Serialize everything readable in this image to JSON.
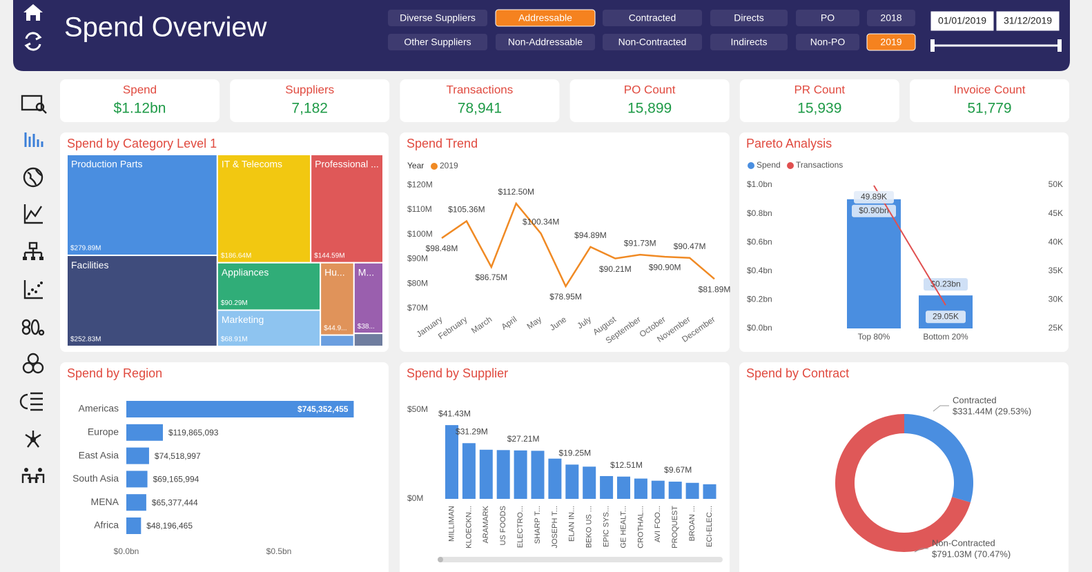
{
  "header": {
    "title": "Spend Overview",
    "filters": [
      [
        {
          "label": "Diverse Suppliers",
          "selected": false
        },
        {
          "label": "Addressable",
          "selected": true
        },
        {
          "label": "Contracted",
          "selected": false
        },
        {
          "label": "Directs",
          "selected": false
        },
        {
          "label": "PO",
          "selected": false
        },
        {
          "label": "2018",
          "selected": false
        }
      ],
      [
        {
          "label": "Other Suppliers",
          "selected": false
        },
        {
          "label": "Non-Addressable",
          "selected": false
        },
        {
          "label": "Non-Contracted",
          "selected": false
        },
        {
          "label": "Indirects",
          "selected": false
        },
        {
          "label": "Non-PO",
          "selected": false
        },
        {
          "label": "2019",
          "selected": true
        }
      ]
    ],
    "date_range": [
      "01/01/2019",
      "31/12/2019"
    ]
  },
  "kpis": [
    {
      "label": "Spend",
      "value": "$1.12bn"
    },
    {
      "label": "Suppliers",
      "value": "7,182"
    },
    {
      "label": "Transactions",
      "value": "78,941"
    },
    {
      "label": "PO Count",
      "value": "15,899"
    },
    {
      "label": "PR Count",
      "value": "15,939"
    },
    {
      "label": "Invoice Count",
      "value": "51,779"
    }
  ],
  "chart_data": [
    {
      "type": "treemap",
      "title": "Spend by Category Level 1",
      "categories": [
        "Production Parts",
        "IT & Telecoms",
        "Professional ...",
        "Facilities",
        "Appliances",
        "Marketing",
        "Hu...",
        "M...",
        null,
        null
      ],
      "values": [
        279.89,
        186.64,
        144.59,
        252.83,
        90.29,
        68.91,
        44.9,
        38,
        7,
        7
      ],
      "value_labels": [
        "$279.89M",
        "$186.64M",
        "$144.59M",
        "$252.83M",
        "$90.29M",
        "$68.91M",
        "$44.9...",
        "$38...",
        null,
        null
      ],
      "colors": [
        "#4a8ee0",
        "#f2c811",
        "#df5858",
        "#3f4c7c",
        "#30ad78",
        "#8ec4f0",
        "#e0935a",
        "#9a5fae",
        "#6b9fe0",
        "#6f7d9f"
      ]
    },
    {
      "type": "line",
      "title": "Spend Trend",
      "legend_title": "Year",
      "categories": [
        "January",
        "February",
        "March",
        "April",
        "May",
        "June",
        "July",
        "August",
        "September",
        "October",
        "November",
        "December"
      ],
      "series": [
        {
          "name": "2019",
          "color": "#f08a24",
          "values": [
            98.48,
            105.36,
            86.75,
            112.5,
            100.34,
            78.95,
            94.89,
            90.21,
            91.73,
            90.9,
            90.47,
            81.89
          ],
          "value_labels": [
            "$98.48M",
            "$105.36M",
            "$86.75M",
            "$112.50M",
            "$100.34M",
            "$78.95M",
            "$94.89M",
            "$90.21M",
            "$91.73M",
            "$90.90M",
            "$90.47M",
            "$81.89M"
          ]
        }
      ],
      "ylim": [
        68,
        122
      ],
      "yticks": [
        {
          "value": 70,
          "label": "$70M"
        },
        {
          "value": 80,
          "label": "$80M"
        },
        {
          "value": 90,
          "label": "$90M"
        },
        {
          "value": 100,
          "label": "$100M"
        },
        {
          "value": 110,
          "label": "$110M"
        },
        {
          "value": 120,
          "label": "$120M"
        }
      ]
    },
    {
      "type": "pareto",
      "title": "Pareto Analysis",
      "categories": [
        "Top 80%",
        "Bottom 20%"
      ],
      "series": [
        {
          "name": "Spend",
          "type": "bar",
          "color": "#4a8ee0",
          "values": [
            0.9,
            0.23
          ],
          "value_labels": [
            "$0.90bn",
            "$0.23bn"
          ]
        },
        {
          "name": "Transactions",
          "type": "line",
          "axis": "y2",
          "color": "#e05050",
          "values": [
            49890,
            29050
          ],
          "value_labels": [
            "49.89K",
            "29.05K"
          ]
        }
      ],
      "ylim": [
        0,
        1
      ],
      "yticks": [
        {
          "value": 0,
          "label": "$0.0bn"
        },
        {
          "value": 0.2,
          "label": "$0.2bn"
        },
        {
          "value": 0.4,
          "label": "$0.4bn"
        },
        {
          "value": 0.6,
          "label": "$0.6bn"
        },
        {
          "value": 0.8,
          "label": "$0.8bn"
        },
        {
          "value": 1,
          "label": "$1.0bn"
        }
      ],
      "y2lim": [
        25000,
        50000
      ],
      "y2ticks": [
        {
          "value": 25000,
          "label": "25K"
        },
        {
          "value": 30000,
          "label": "30K"
        },
        {
          "value": 35000,
          "label": "35K"
        },
        {
          "value": 40000,
          "label": "40K"
        },
        {
          "value": 45000,
          "label": "45K"
        },
        {
          "value": 50000,
          "label": "50K"
        }
      ]
    },
    {
      "type": "hbar",
      "title": "Spend by Region",
      "color": "#4a8ee0",
      "categories": [
        "Americas",
        "Europe",
        "East Asia",
        "South Asia",
        "MENA",
        "Africa"
      ],
      "values": [
        745352455,
        119865093,
        74518997,
        69165994,
        65377444,
        48196465
      ],
      "value_labels": [
        "$745,352,455",
        "$119,865,093",
        "$74,518,997",
        "$69,165,994",
        "$65,377,444",
        "$48,196,465"
      ],
      "xlim": [
        0,
        800000000
      ],
      "xticks": [
        {
          "value": 0,
          "label": "$0.0bn"
        },
        {
          "value": 500000000,
          "label": "$0.5bn"
        }
      ]
    },
    {
      "type": "bar",
      "title": "Spend by Supplier",
      "color": "#4a8ee0",
      "categories": [
        "MILLIMAN",
        "KLOECKN...",
        "ARAMARK",
        "US FOODS",
        "ELECTRO...",
        "SHARP T...",
        "JOSEPH T...",
        "ELAN IN...",
        "BEKO US ...",
        "EPIC SYS...",
        "GE HEALT...",
        "CROTHAL...",
        "AVI FOO...",
        "PROQUEST",
        "BROAN ...",
        "ECI-ELEC..."
      ],
      "values": [
        41.43,
        31.29,
        27.6,
        27.4,
        27.21,
        27.0,
        22.6,
        19.25,
        18.1,
        12.8,
        12.51,
        11.4,
        10.2,
        9.67,
        9.0,
        8.2
      ],
      "value_labels": [
        "$41.43M",
        "$31.29M",
        null,
        null,
        "$27.21M",
        null,
        null,
        "$19.25M",
        null,
        null,
        "$12.51M",
        null,
        null,
        "$9.67M",
        null,
        null
      ],
      "ylim": [
        0,
        50
      ],
      "yticks": [
        {
          "value": 0,
          "label": "$0M"
        },
        {
          "value": 50,
          "label": "$50M"
        }
      ]
    },
    {
      "type": "donut",
      "title": "Spend by Contract",
      "categories": [
        "Contracted",
        "Non-Contracted"
      ],
      "values": [
        331.44,
        791.03
      ],
      "value_labels": [
        "$331.44M (29.53%)",
        "$791.03M (70.47%)"
      ],
      "colors": [
        "#4a8ee0",
        "#df5858"
      ]
    }
  ]
}
